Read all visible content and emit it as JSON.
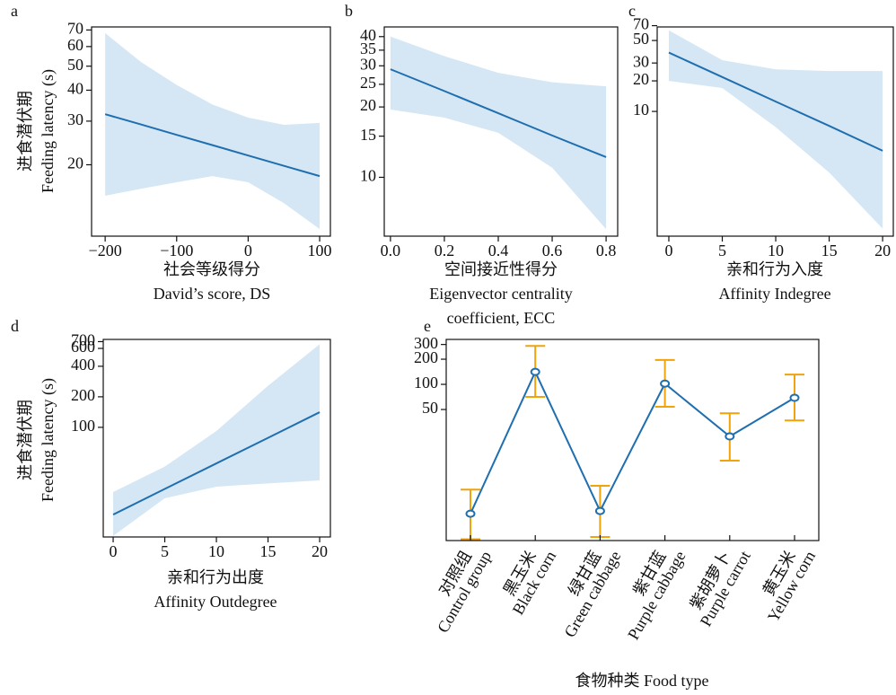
{
  "chart_data": [
    {
      "type": "line",
      "label": "a",
      "y_label": [
        "进食潜伏期",
        "Feeding latency (s)"
      ],
      "x_label": [
        "社会等级得分",
        "David’s score, DS"
      ],
      "color": "#1f6fb0",
      "band_color": "#d5e7f4",
      "log_y": true,
      "xlim": [
        -219,
        115
      ],
      "xticks": [
        {
          "value": -200,
          "label": "−200"
        },
        {
          "value": -100,
          "label": "−100"
        },
        0,
        100
      ],
      "ylim": [
        10.3,
        72
      ],
      "yticks": [
        20,
        30,
        40,
        50,
        60,
        70
      ],
      "x": [
        -200,
        -150,
        -100,
        -50,
        0,
        50,
        100
      ],
      "values": [
        32,
        29.1,
        26.4,
        24,
        21.8,
        19.8,
        18
      ],
      "upper": [
        68,
        52,
        42,
        35,
        31,
        29,
        29.5
      ],
      "lower": [
        15,
        16,
        17,
        18,
        17,
        14,
        11
      ]
    },
    {
      "type": "line",
      "label": "b",
      "x_label": [
        "空间接近性得分",
        "Eigenvector centrality",
        "coefficient, ECC"
      ],
      "color": "#1f6fb0",
      "band_color": "#d5e7f4",
      "log_y": true,
      "xlim": [
        -0.023,
        0.843
      ],
      "xticks": [
        {
          "value": 0,
          "label": "0.0"
        },
        0.2,
        0.4,
        0.6,
        0.8
      ],
      "ylim": [
        5.6,
        44
      ],
      "yticks": [
        10,
        15,
        20,
        25,
        30,
        35,
        40
      ],
      "x": [
        0,
        0.2,
        0.4,
        0.6,
        0.8
      ],
      "values": [
        29,
        23.4,
        18.8,
        15.1,
        12.2
      ],
      "upper": [
        40,
        33,
        28,
        25.5,
        24.5
      ],
      "lower": [
        19.5,
        18,
        15.5,
        11,
        6
      ]
    },
    {
      "type": "line",
      "label": "c",
      "x_label": [
        "亲和行为入度",
        "Affinity Indegree"
      ],
      "color": "#1f6fb0",
      "band_color": "#d5e7f4",
      "log_y": true,
      "xlim": [
        -1.09,
        21
      ],
      "xticks": [
        0,
        5,
        10,
        15,
        20
      ],
      "ylim": [
        0.59,
        68
      ],
      "yticks": [
        10,
        20,
        30,
        50,
        70
      ],
      "x": [
        0,
        5,
        10,
        15,
        20
      ],
      "values": [
        38,
        21.8,
        12.5,
        7.2,
        4.1
      ],
      "upper": [
        63,
        32,
        26,
        25,
        25
      ],
      "lower": [
        20,
        17,
        7,
        2.5,
        0.7
      ]
    },
    {
      "type": "line",
      "label": "d",
      "y_label": [
        "进食潜伏期",
        "Feeding latency (s)"
      ],
      "x_label": [
        "亲和行为出度",
        "Affinity Outdegree"
      ],
      "color": "#1f6fb0",
      "band_color": "#d5e7f4",
      "log_y": true,
      "xlim": [
        -0.96,
        21.04
      ],
      "xticks": [
        0,
        5,
        10,
        15,
        20
      ],
      "ylim": [
        8.3,
        736
      ],
      "yticks": [
        100,
        200,
        400,
        600,
        700
      ],
      "x": [
        0,
        5,
        10,
        15,
        20
      ],
      "values": [
        13.8,
        24.7,
        44.1,
        78.8,
        141
      ],
      "upper": [
        23,
        41,
        92,
        257,
        660
      ],
      "lower": [
        8.5,
        20,
        26,
        28,
        30
      ]
    },
    {
      "type": "errorbar",
      "label": "e",
      "x_label": [
        "食物种类 Food type"
      ],
      "color": "#1f6fb0",
      "error_color": "#f0a30a",
      "log_y": true,
      "categories": [
        [
          "对照组",
          "Control group"
        ],
        [
          "黑玉米",
          "Black corn"
        ],
        [
          "绿甘蓝",
          "Green cabbage"
        ],
        [
          "紫甘蓝",
          "Purple cabbage"
        ],
        [
          "紫胡萝卜",
          "Purple carrot"
        ],
        [
          "黄玉米",
          "Yellow corn"
        ]
      ],
      "ylim": [
        1.35,
        345
      ],
      "yticks": [
        50,
        100,
        200,
        300
      ],
      "values": [
        2.83,
        141,
        3.05,
        102,
        23.8,
        69
      ],
      "upper": [
        5.5,
        288,
        6.1,
        196,
        45,
        131
      ],
      "lower": [
        1.4,
        70.8,
        1.49,
        54,
        12.2,
        37
      ]
    }
  ]
}
